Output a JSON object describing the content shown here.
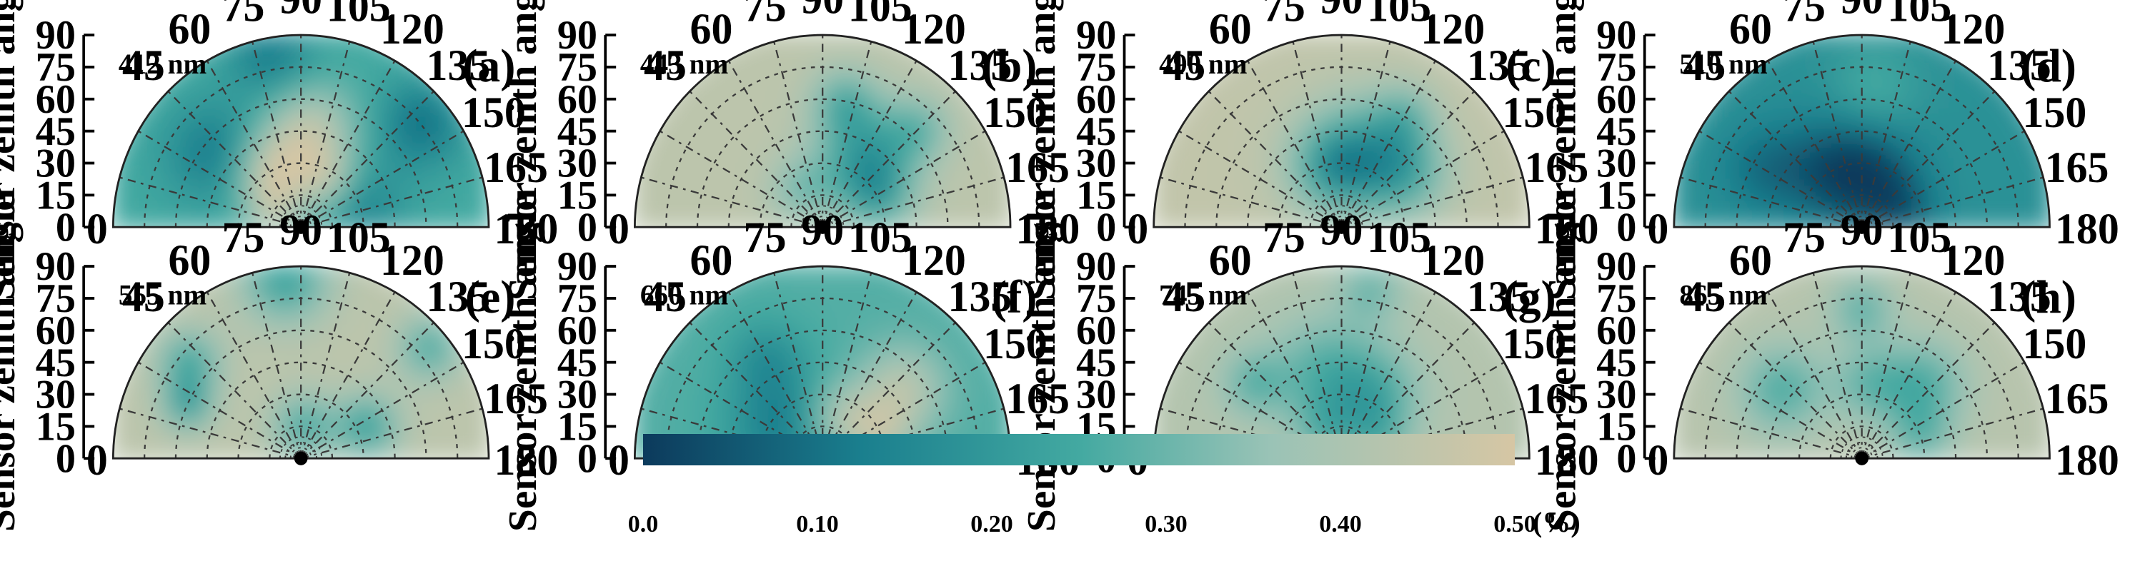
{
  "chart_data": {
    "type": "heatmap",
    "projection": "polar-half",
    "ylabel": "Sensor zenith angle",
    "zenith_ticks": [
      0,
      15,
      30,
      45,
      60,
      75,
      90
    ],
    "azimuth_ticks": [
      45,
      60,
      75,
      90,
      105,
      120,
      135,
      150,
      165
    ],
    "azimuth_ends": [
      0,
      180
    ],
    "theta_range": [
      0,
      90
    ],
    "phi_range": [
      0,
      180
    ],
    "grid": true,
    "colorbar": {
      "min": 0.0,
      "max": 0.5,
      "ticks": [
        "0.0",
        "0.10",
        "0.20",
        "0.30",
        "0.40",
        "0.50"
      ],
      "unit": "(%)",
      "colors": [
        "#0c3a5c",
        "#1a7f8e",
        "#43a9a1",
        "#9ac3b6",
        "#d6c6a4"
      ]
    },
    "panels": [
      {
        "label": "(a)",
        "wavelength": "412 nm",
        "field": {
          "base": 0.25,
          "blobs": [
            {
              "phi": 40,
              "theta": 55,
              "v": 0.12,
              "r": 16
            },
            {
              "phi": 80,
              "theta": 82,
              "v": 0.12,
              "r": 14
            },
            {
              "phi": 140,
              "theta": 75,
              "v": 0.1,
              "r": 14
            },
            {
              "phi": 160,
              "theta": 30,
              "v": 0.14,
              "r": 14
            },
            {
              "phi": 60,
              "theta": 30,
              "v": 0.45,
              "r": 12
            },
            {
              "phi": 95,
              "theta": 45,
              "v": 0.45,
              "r": 15
            },
            {
              "phi": 120,
              "theta": 25,
              "v": 0.42,
              "r": 10
            },
            {
              "phi": 30,
              "theta": 15,
              "v": 0.4,
              "r": 9
            }
          ]
        }
      },
      {
        "label": "(b)",
        "wavelength": "443 nm",
        "field": {
          "base": 0.44,
          "blobs": [
            {
              "phi": 120,
              "theta": 40,
              "v": 0.22,
              "r": 16
            },
            {
              "phi": 150,
              "theta": 30,
              "v": 0.26,
              "r": 12
            },
            {
              "phi": 100,
              "theta": 60,
              "v": 0.28,
              "r": 10
            },
            {
              "phi": 135,
              "theta": 65,
              "v": 0.3,
              "r": 10
            },
            {
              "phi": 60,
              "theta": 20,
              "v": 0.32,
              "r": 10
            }
          ]
        }
      },
      {
        "label": "(c)",
        "wavelength": "490 nm",
        "field": {
          "base": 0.45,
          "blobs": [
            {
              "phi": 105,
              "theta": 35,
              "v": 0.25,
              "r": 18
            },
            {
              "phi": 80,
              "theta": 28,
              "v": 0.28,
              "r": 14
            },
            {
              "phi": 140,
              "theta": 40,
              "v": 0.28,
              "r": 14
            },
            {
              "phi": 120,
              "theta": 60,
              "v": 0.32,
              "r": 10
            }
          ]
        }
      },
      {
        "label": "(d)",
        "wavelength": "510 nm",
        "field": {
          "base": 0.18,
          "blobs": [
            {
              "phi": 60,
              "theta": 30,
              "v": 0.06,
              "r": 18
            },
            {
              "phi": 100,
              "theta": 25,
              "v": 0.06,
              "r": 16
            },
            {
              "phi": 160,
              "theta": 20,
              "v": 0.08,
              "r": 12
            },
            {
              "phi": 30,
              "theta": 55,
              "v": 0.1,
              "r": 14
            },
            {
              "phi": 95,
              "theta": 65,
              "v": 0.26,
              "r": 14
            }
          ]
        }
      },
      {
        "label": "(e)",
        "wavelength": "555 nm",
        "field": {
          "base": 0.44,
          "blobs": [
            {
              "phi": 85,
              "theta": 85,
              "v": 0.22,
              "r": 14
            },
            {
              "phi": 40,
              "theta": 70,
              "v": 0.24,
              "r": 10
            },
            {
              "phi": 25,
              "theta": 60,
              "v": 0.22,
              "r": 8
            },
            {
              "phi": 155,
              "theta": 35,
              "v": 0.22,
              "r": 10
            },
            {
              "phi": 95,
              "theta": 15,
              "v": 0.25,
              "r": 10
            },
            {
              "phi": 140,
              "theta": 80,
              "v": 0.26,
              "r": 10
            }
          ]
        }
      },
      {
        "label": "(f)",
        "wavelength": "660 nm",
        "field": {
          "base": 0.27,
          "blobs": [
            {
              "phi": 40,
              "theta": 25,
              "v": 0.12,
              "r": 18
            },
            {
              "phi": 60,
              "theta": 55,
              "v": 0.18,
              "r": 12
            },
            {
              "phi": 140,
              "theta": 50,
              "v": 0.44,
              "r": 14
            },
            {
              "phi": 115,
              "theta": 20,
              "v": 0.44,
              "r": 12
            },
            {
              "phi": 160,
              "theta": 30,
              "v": 0.4,
              "r": 10
            }
          ]
        }
      },
      {
        "label": "(g)",
        "wavelength": "745 nm",
        "field": {
          "base": 0.42,
          "blobs": [
            {
              "phi": 80,
              "theta": 40,
              "v": 0.26,
              "r": 18
            },
            {
              "phi": 120,
              "theta": 35,
              "v": 0.28,
              "r": 14
            },
            {
              "phi": 40,
              "theta": 55,
              "v": 0.28,
              "r": 10
            },
            {
              "phi": 100,
              "theta": 80,
              "v": 0.3,
              "r": 10
            },
            {
              "phi": 150,
              "theta": 20,
              "v": 0.3,
              "r": 10
            },
            {
              "phi": 60,
              "theta": 15,
              "v": 0.3,
              "r": 10
            }
          ]
        }
      },
      {
        "label": "(h)",
        "wavelength": "865 nm",
        "field": {
          "base": 0.43,
          "blobs": [
            {
              "phi": 40,
              "theta": 50,
              "v": 0.26,
              "r": 14
            },
            {
              "phi": 130,
              "theta": 45,
              "v": 0.26,
              "r": 14
            },
            {
              "phi": 90,
              "theta": 70,
              "v": 0.28,
              "r": 10
            },
            {
              "phi": 95,
              "theta": 35,
              "v": 0.3,
              "r": 12
            },
            {
              "phi": 160,
              "theta": 30,
              "v": 0.3,
              "r": 10
            }
          ]
        }
      }
    ]
  }
}
